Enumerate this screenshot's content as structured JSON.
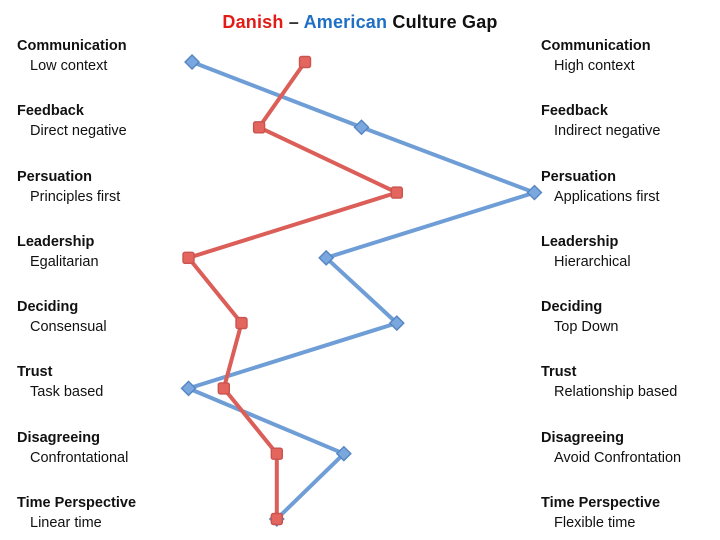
{
  "title": {
    "danish": "Danish",
    "separator": "–",
    "american": "American",
    "rest": "Culture Gap"
  },
  "colors": {
    "danish_series": "#DB5E58",
    "danish_marker_fill": "#E4655E",
    "danish_marker_stroke": "#C9534F",
    "american_series": "#6F9ED7",
    "american_marker_fill": "#7AA7DD",
    "american_marker_stroke": "#5585C2",
    "title_danish": "#E21B17",
    "title_american": "#1E6FC5",
    "title_separator": "#333333",
    "title_text": "#111111",
    "background": "#FFFFFF"
  },
  "chart_data": {
    "type": "line",
    "title": "Danish – American Culture Gap",
    "orientation": "horizontal values, one row per category, no visible axes",
    "value_range": [
      0,
      100
    ],
    "axes_visible": false,
    "grid": false,
    "legend": "series identified by colored words in title (Danish = red squares, American = blue diamonds)",
    "categories": [
      "Communication",
      "Feedback",
      "Persuation",
      "Leadership",
      "Deciding",
      "Trust",
      "Disagreeing",
      "Time Perspective"
    ],
    "left_labels": [
      "Low context",
      "Direct negative",
      "Principles first",
      "Egalitarian",
      "Consensual",
      "Task based",
      "Confrontational",
      "Linear time"
    ],
    "right_labels": [
      "High context",
      "Indirect negative",
      "Applications first",
      "Hierarchical",
      "Top Down",
      "Relationship based",
      "Avoid Confrontation",
      "Flexible time"
    ],
    "series": [
      {
        "name": "Danish",
        "marker": "square",
        "values": [
          34,
          21,
          60,
          1,
          16,
          11,
          26,
          26
        ]
      },
      {
        "name": "American",
        "marker": "diamond",
        "values": [
          2,
          50,
          99,
          40,
          60,
          1,
          45,
          26
        ]
      }
    ]
  }
}
